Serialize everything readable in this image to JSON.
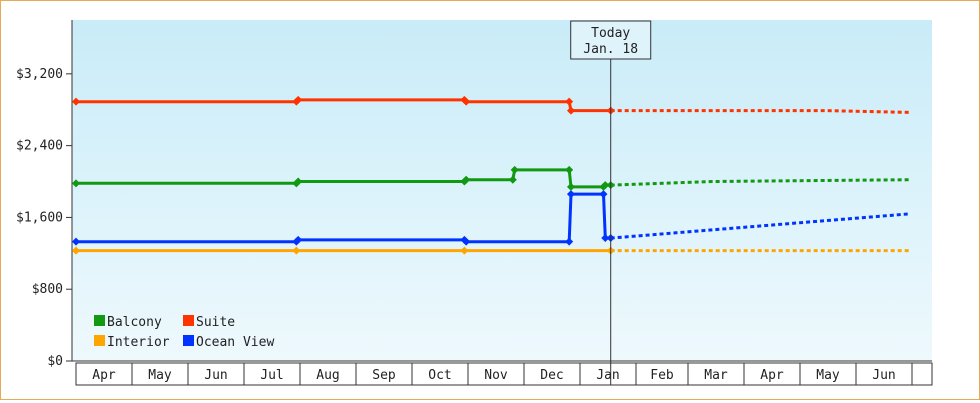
{
  "chart_data": {
    "type": "line",
    "title": "",
    "xlabel": "",
    "ylabel": "",
    "ylim": [
      0,
      3800
    ],
    "y_ticks": [
      0,
      800,
      1600,
      2400,
      3200
    ],
    "y_tick_labels": [
      "$0",
      "$800",
      "$1,600",
      "$2,400",
      "$3,200"
    ],
    "month_labels": [
      "Apr",
      "May",
      "Jun",
      "Jul",
      "Aug",
      "Sep",
      "Oct",
      "Nov",
      "Dec",
      "Jan",
      "Feb",
      "Mar",
      "Apr",
      "May",
      "Jun"
    ],
    "x_range": [
      "2024-04-01",
      "2025-06-30"
    ],
    "today": {
      "date": "2025-01-18",
      "label_line1": "Today",
      "label_line2": "Jan. 18"
    },
    "legend_position": "bottom-left",
    "grid": false,
    "series": [
      {
        "name": "Suite",
        "color": "#ff3300",
        "points": [
          [
            "2024-04-01",
            2890
          ],
          [
            "2024-07-30",
            2890
          ],
          [
            "2024-07-31",
            2910
          ],
          [
            "2024-10-30",
            2910
          ],
          [
            "2024-10-31",
            2890
          ],
          [
            "2024-12-26",
            2890
          ],
          [
            "2024-12-27",
            2790
          ],
          [
            "2025-01-18",
            2790
          ]
        ],
        "forecast": [
          [
            "2025-01-18",
            2790
          ],
          [
            "2025-05-15",
            2790
          ],
          [
            "2025-06-30",
            2770
          ]
        ]
      },
      {
        "name": "Balcony",
        "color": "#119911",
        "points": [
          [
            "2024-04-01",
            1980
          ],
          [
            "2024-07-30",
            1980
          ],
          [
            "2024-07-31",
            2000
          ],
          [
            "2024-10-30",
            2000
          ],
          [
            "2024-10-31",
            2020
          ],
          [
            "2024-11-25",
            2020
          ],
          [
            "2024-11-26",
            2130
          ],
          [
            "2024-12-26",
            2130
          ],
          [
            "2024-12-27",
            1940
          ],
          [
            "2025-01-14",
            1940
          ],
          [
            "2025-01-15",
            1960
          ],
          [
            "2025-01-18",
            1960
          ]
        ],
        "forecast": [
          [
            "2025-01-18",
            1960
          ],
          [
            "2025-03-15",
            2000
          ],
          [
            "2025-06-30",
            2020
          ]
        ]
      },
      {
        "name": "Ocean View",
        "color": "#0033ff",
        "points": [
          [
            "2024-04-01",
            1330
          ],
          [
            "2024-07-30",
            1330
          ],
          [
            "2024-07-31",
            1350
          ],
          [
            "2024-10-30",
            1350
          ],
          [
            "2024-10-31",
            1330
          ],
          [
            "2024-12-26",
            1330
          ],
          [
            "2024-12-27",
            1860
          ],
          [
            "2025-01-14",
            1860
          ],
          [
            "2025-01-15",
            1370
          ],
          [
            "2025-01-18",
            1370
          ]
        ],
        "forecast": [
          [
            "2025-01-18",
            1370
          ],
          [
            "2025-06-30",
            1640
          ]
        ]
      },
      {
        "name": "Interior",
        "color": "#ffa500",
        "points": [
          [
            "2024-04-01",
            1230
          ],
          [
            "2024-07-30",
            1230
          ],
          [
            "2024-10-30",
            1230
          ],
          [
            "2025-01-18",
            1230
          ]
        ],
        "forecast": [
          [
            "2025-01-18",
            1230
          ],
          [
            "2025-06-30",
            1230
          ]
        ]
      }
    ],
    "legend": [
      {
        "name": "Balcony",
        "color": "#119911"
      },
      {
        "name": "Suite",
        "color": "#ff3300"
      },
      {
        "name": "Interior",
        "color": "#ffa500"
      },
      {
        "name": "Ocean View",
        "color": "#0033ff"
      }
    ]
  }
}
